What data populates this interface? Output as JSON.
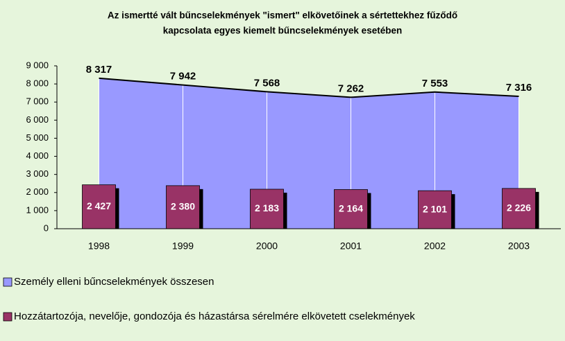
{
  "chart_data": {
    "type": "combo",
    "title": [
      "Az ismertté vált bűncselekmények \"ismert\" elkövetőinek a sértettekhez fűződő",
      "kapcsolata egyes kiemelt bűncselekmények esetében"
    ],
    "categories": [
      "1998",
      "1999",
      "2000",
      "2001",
      "2002",
      "2003"
    ],
    "series": [
      {
        "name": "Személy elleni bűncselekmények összesen",
        "type": "area",
        "color": "#9999ff",
        "values": [
          8317,
          7942,
          7568,
          7262,
          7553,
          7316
        ],
        "value_labels": [
          "8 317",
          "7 942",
          "7 568",
          "7 262",
          "7 553",
          "7 316"
        ]
      },
      {
        "name": "Hozzátartozója, nevelője, gondozója és házastársa sérelmére elkövetett cselekmények",
        "type": "bar",
        "color": "#993366",
        "values": [
          2427,
          2380,
          2183,
          2164,
          2101,
          2226
        ],
        "value_labels": [
          "2 427",
          "2 380",
          "2 183",
          "2 164",
          "2 101",
          "2 226"
        ]
      }
    ],
    "ylim": [
      0,
      9000
    ],
    "yticks": [
      {
        "value": 0,
        "label": "0"
      },
      {
        "value": 1000,
        "label": "1 000"
      },
      {
        "value": 2000,
        "label": "2 000"
      },
      {
        "value": 3000,
        "label": "3 000"
      },
      {
        "value": 4000,
        "label": "4 000"
      },
      {
        "value": 5000,
        "label": "5 000"
      },
      {
        "value": 6000,
        "label": "6 000"
      },
      {
        "value": 7000,
        "label": "7 000"
      },
      {
        "value": 8000,
        "label": "8 000"
      },
      {
        "value": 9000,
        "label": "9 000"
      }
    ],
    "legend": "bottom"
  }
}
